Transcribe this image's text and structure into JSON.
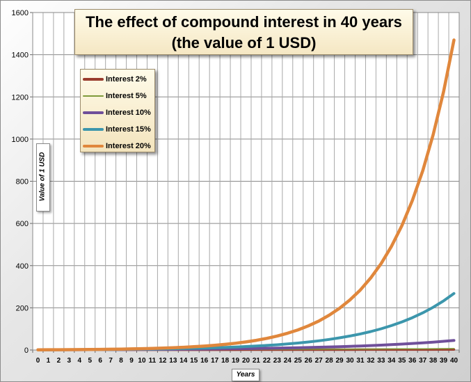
{
  "chart_data": {
    "type": "line",
    "title_line1": "The effect of compound interest in 40 years",
    "title_line2": "(the value of 1 USD)",
    "xlabel": "Years",
    "ylabel": "Value of 1 USD",
    "x": [
      0,
      1,
      2,
      3,
      4,
      5,
      6,
      7,
      8,
      9,
      10,
      11,
      12,
      13,
      14,
      15,
      16,
      17,
      18,
      19,
      20,
      21,
      22,
      23,
      24,
      25,
      26,
      27,
      28,
      29,
      30,
      31,
      32,
      33,
      34,
      35,
      36,
      37,
      38,
      39,
      40
    ],
    "ylim": [
      0,
      1600
    ],
    "yticks": [
      0,
      200,
      400,
      600,
      800,
      1000,
      1200,
      1400,
      1600
    ],
    "grid": true,
    "legend_position": "upper-left",
    "series": [
      {
        "name": "Interest 2%",
        "color": "#9a3d2e",
        "width": 3.5,
        "values": [
          1,
          1.02,
          1.04,
          1.06,
          1.08,
          1.1,
          1.13,
          1.15,
          1.17,
          1.2,
          1.22,
          1.24,
          1.27,
          1.29,
          1.32,
          1.35,
          1.37,
          1.4,
          1.43,
          1.46,
          1.49,
          1.52,
          1.55,
          1.58,
          1.61,
          1.64,
          1.67,
          1.71,
          1.74,
          1.78,
          1.81,
          1.85,
          1.88,
          1.92,
          1.96,
          2,
          2.04,
          2.08,
          2.12,
          2.16,
          2.21
        ]
      },
      {
        "name": "Interest 5%",
        "color": "#7f9a3a",
        "width": 1.5,
        "values": [
          1,
          1.05,
          1.1,
          1.16,
          1.22,
          1.28,
          1.34,
          1.41,
          1.48,
          1.55,
          1.63,
          1.71,
          1.8,
          1.89,
          1.98,
          2.08,
          2.18,
          2.29,
          2.41,
          2.53,
          2.65,
          2.79,
          2.93,
          3.07,
          3.23,
          3.39,
          3.56,
          3.73,
          3.92,
          4.12,
          4.32,
          4.54,
          4.76,
          5,
          5.25,
          5.52,
          5.79,
          6.08,
          6.39,
          6.7,
          7.04
        ]
      },
      {
        "name": "Interest 10%",
        "color": "#6f4f9a",
        "width": 4,
        "values": [
          1,
          1.1,
          1.21,
          1.33,
          1.46,
          1.61,
          1.77,
          1.95,
          2.14,
          2.36,
          2.59,
          2.85,
          3.14,
          3.45,
          3.8,
          4.18,
          4.59,
          5.05,
          5.56,
          6.12,
          6.73,
          7.4,
          8.14,
          8.95,
          9.85,
          10.83,
          11.92,
          13.11,
          14.42,
          15.86,
          17.45,
          19.19,
          21.11,
          23.23,
          25.55,
          28.1,
          30.91,
          34,
          37.4,
          41.14,
          45.26
        ]
      },
      {
        "name": "Interest 15%",
        "color": "#3c96ac",
        "width": 4,
        "values": [
          1,
          1.15,
          1.32,
          1.52,
          1.75,
          2.01,
          2.31,
          2.66,
          3.06,
          3.52,
          4.05,
          4.65,
          5.35,
          6.15,
          7.08,
          8.14,
          9.36,
          10.76,
          12.38,
          14.23,
          16.37,
          18.82,
          21.64,
          24.89,
          28.63,
          32.92,
          37.86,
          43.54,
          50.07,
          57.58,
          66.21,
          76.14,
          87.57,
          100.7,
          115.8,
          133.18,
          153.15,
          176.12,
          202.54,
          232.92,
          267.86
        ]
      },
      {
        "name": "Interest 20%",
        "color": "#e0873c",
        "width": 4.5,
        "values": [
          1,
          1.2,
          1.44,
          1.73,
          2.07,
          2.49,
          2.99,
          3.58,
          4.3,
          5.16,
          6.19,
          7.43,
          8.92,
          10.7,
          12.84,
          15.41,
          18.49,
          22.19,
          26.62,
          31.95,
          38.34,
          46.01,
          55.21,
          66.25,
          79.5,
          95.4,
          114.48,
          137.37,
          164.84,
          197.81,
          237.38,
          284.85,
          341.82,
          410.19,
          492.22,
          590.67,
          708.8,
          850.56,
          1020.67,
          1224.81,
          1469.77
        ]
      }
    ]
  }
}
